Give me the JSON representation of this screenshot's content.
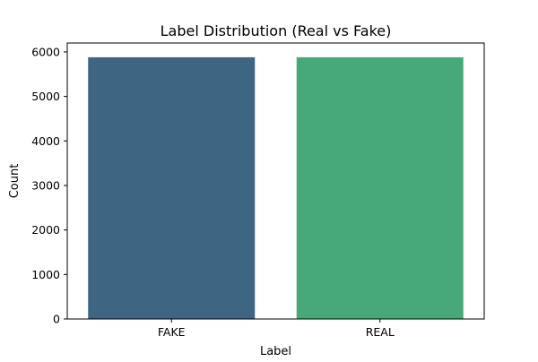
{
  "chart_data": {
    "type": "bar",
    "title": "Label Distribution (Real vs Fake)",
    "xlabel": "Label",
    "ylabel": "Count",
    "categories": [
      "FAKE",
      "REAL"
    ],
    "values": [
      5880,
      5880
    ],
    "ylim": [
      0,
      6200
    ],
    "yticks": [
      0,
      1000,
      2000,
      3000,
      4000,
      5000,
      6000
    ],
    "colors": [
      "#3e6683",
      "#47a879"
    ],
    "grid": false,
    "legend": "none"
  }
}
